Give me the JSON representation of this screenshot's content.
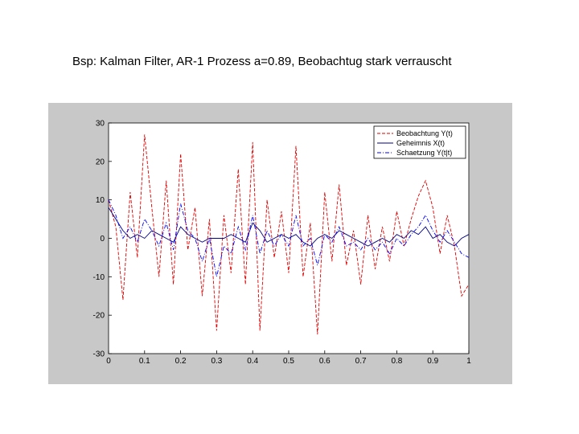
{
  "slide": {
    "title": "Bsp: Kalman Filter, AR-1 Prozess a=0.89, Beobachtug stark verrauscht"
  },
  "chart_data": {
    "type": "line",
    "title": "",
    "xlabel": "",
    "ylabel": "",
    "xlim": [
      0,
      1
    ],
    "ylim": [
      -30,
      30
    ],
    "grid": false,
    "legend_position": "top-right",
    "xticks": [
      "0",
      "0.1",
      "0.2",
      "0.3",
      "0.4",
      "0.5",
      "0.6",
      "0.7",
      "0.8",
      "0.9",
      "1"
    ],
    "yticks": [
      "30",
      "20",
      "10",
      "0",
      "-10",
      "-20",
      "-30"
    ],
    "x": [
      0,
      0.02,
      0.04,
      0.06,
      0.08,
      0.1,
      0.12,
      0.14,
      0.16,
      0.18,
      0.2,
      0.22,
      0.24,
      0.26,
      0.28,
      0.3,
      0.32,
      0.34,
      0.36,
      0.38,
      0.4,
      0.42,
      0.44,
      0.46,
      0.48,
      0.5,
      0.52,
      0.54,
      0.56,
      0.58,
      0.6,
      0.62,
      0.64,
      0.66,
      0.68,
      0.7,
      0.72,
      0.74,
      0.76,
      0.78,
      0.8,
      0.82,
      0.84,
      0.86,
      0.88,
      0.9,
      0.92,
      0.94,
      0.96,
      0.98,
      1.0
    ],
    "series": [
      {
        "name": "Beobachtung Y(t)",
        "color": "#e00000",
        "dash": "dash",
        "values": [
          10,
          3,
          -16,
          12,
          -5,
          27,
          8,
          -10,
          15,
          -12,
          22,
          -3,
          8,
          -15,
          5,
          -24,
          6,
          -9,
          18,
          -12,
          25,
          -24,
          10,
          -5,
          7,
          -9,
          24,
          -10,
          4,
          -25,
          12,
          -6,
          14,
          -7,
          2,
          -12,
          6,
          -8,
          3,
          -6,
          7,
          -2,
          5,
          11,
          15,
          8,
          -4,
          6,
          -2,
          -15,
          -12
        ]
      },
      {
        "name": "Geheimnis X(t)",
        "color": "#000080",
        "dash": "solid",
        "values": [
          8,
          5,
          2,
          0,
          1,
          0,
          2,
          1,
          0,
          -1,
          3,
          1,
          0,
          -1,
          0,
          0,
          0,
          1,
          0,
          -1,
          4,
          2,
          -1,
          0,
          1,
          0,
          1,
          -1,
          -2,
          0,
          1,
          0,
          2,
          1,
          0,
          -1,
          -2,
          -1,
          0,
          -1,
          1,
          0,
          2,
          1,
          3,
          0,
          1,
          -1,
          -2,
          0,
          1
        ]
      },
      {
        "name": "Schaetzung Y(t|t)",
        "color": "#0000ff",
        "dash": "dashdot",
        "values": [
          10,
          6,
          0,
          3,
          -1,
          5,
          2,
          -2,
          4,
          -3,
          9,
          2,
          0,
          -6,
          0,
          -10,
          -2,
          -4,
          3,
          -3,
          6,
          -4,
          2,
          -2,
          1,
          -2,
          6,
          -2,
          0,
          -7,
          1,
          -1,
          3,
          -2,
          -1,
          -3,
          0,
          -3,
          -1,
          -4,
          0,
          -2,
          1,
          3,
          6,
          2,
          -1,
          2,
          -1,
          -4,
          -5
        ]
      }
    ]
  }
}
